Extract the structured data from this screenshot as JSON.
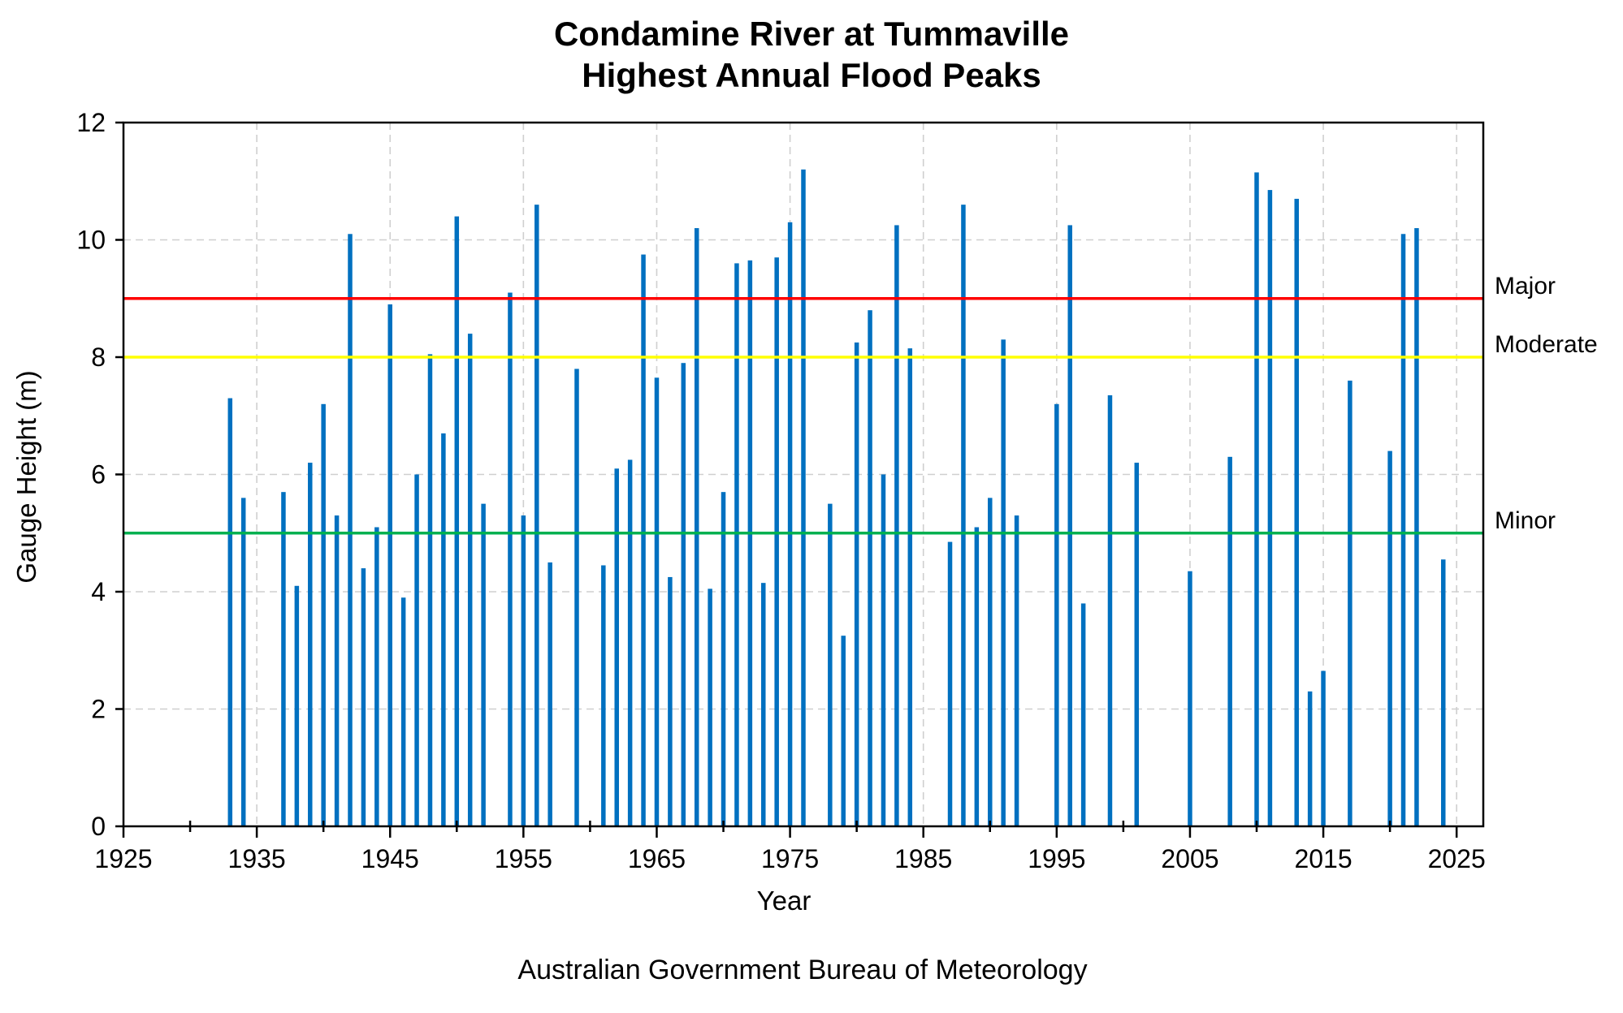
{
  "chart_data": {
    "type": "bar",
    "title": [
      "Condamine River at Tummaville",
      "Highest Annual Flood Peaks"
    ],
    "xlabel": "Year",
    "ylabel": "Gauge Height (m)",
    "footer": "Australian Government Bureau of Meteorology",
    "xlim": [
      1925,
      2027
    ],
    "ylim": [
      0,
      12
    ],
    "xticks": [
      1925,
      1935,
      1945,
      1955,
      1965,
      1975,
      1985,
      1995,
      2005,
      2015,
      2025
    ],
    "xticks_minor": [
      1930,
      1940,
      1950,
      1960,
      1970,
      1980,
      1990,
      2000,
      2010,
      2020
    ],
    "yticks": [
      0,
      2,
      4,
      6,
      8,
      10,
      12
    ],
    "grid": true,
    "bar_color": "#0070C0",
    "thresholds": [
      {
        "name": "Major",
        "value": 9,
        "color": "#FF0000"
      },
      {
        "name": "Moderate",
        "value": 8,
        "color": "#FFFF00"
      },
      {
        "name": "Minor",
        "value": 5,
        "color": "#00B050"
      }
    ],
    "x": [
      1933,
      1934,
      1937,
      1938,
      1939,
      1940,
      1941,
      1942,
      1943,
      1944,
      1945,
      1946,
      1947,
      1948,
      1949,
      1950,
      1951,
      1952,
      1954,
      1955,
      1956,
      1957,
      1959,
      1961,
      1962,
      1963,
      1964,
      1965,
      1966,
      1967,
      1968,
      1969,
      1970,
      1971,
      1972,
      1973,
      1974,
      1975,
      1976,
      1978,
      1979,
      1980,
      1981,
      1982,
      1983,
      1984,
      1987,
      1988,
      1989,
      1990,
      1991,
      1992,
      1995,
      1996,
      1997,
      1999,
      2001,
      2005,
      2008,
      2010,
      2011,
      2013,
      2014,
      2015,
      2017,
      2020,
      2021,
      2022,
      2024
    ],
    "values": [
      7.3,
      5.6,
      5.7,
      4.1,
      6.2,
      7.2,
      5.3,
      10.1,
      4.4,
      5.1,
      8.9,
      3.9,
      6.0,
      8.05,
      6.7,
      10.4,
      8.4,
      5.5,
      9.1,
      5.3,
      10.6,
      4.5,
      7.8,
      4.45,
      6.1,
      6.25,
      9.75,
      7.65,
      4.25,
      7.9,
      10.2,
      4.05,
      5.7,
      9.6,
      9.65,
      4.15,
      9.7,
      10.3,
      11.2,
      5.5,
      3.25,
      8.25,
      8.8,
      6.0,
      10.25,
      8.15,
      4.85,
      10.6,
      5.1,
      5.6,
      8.3,
      5.3,
      7.2,
      10.25,
      3.8,
      7.35,
      6.2,
      4.35,
      6.3,
      11.15,
      10.85,
      10.7,
      2.3,
      2.65,
      7.6,
      6.4,
      10.1,
      10.2,
      4.55
    ]
  }
}
